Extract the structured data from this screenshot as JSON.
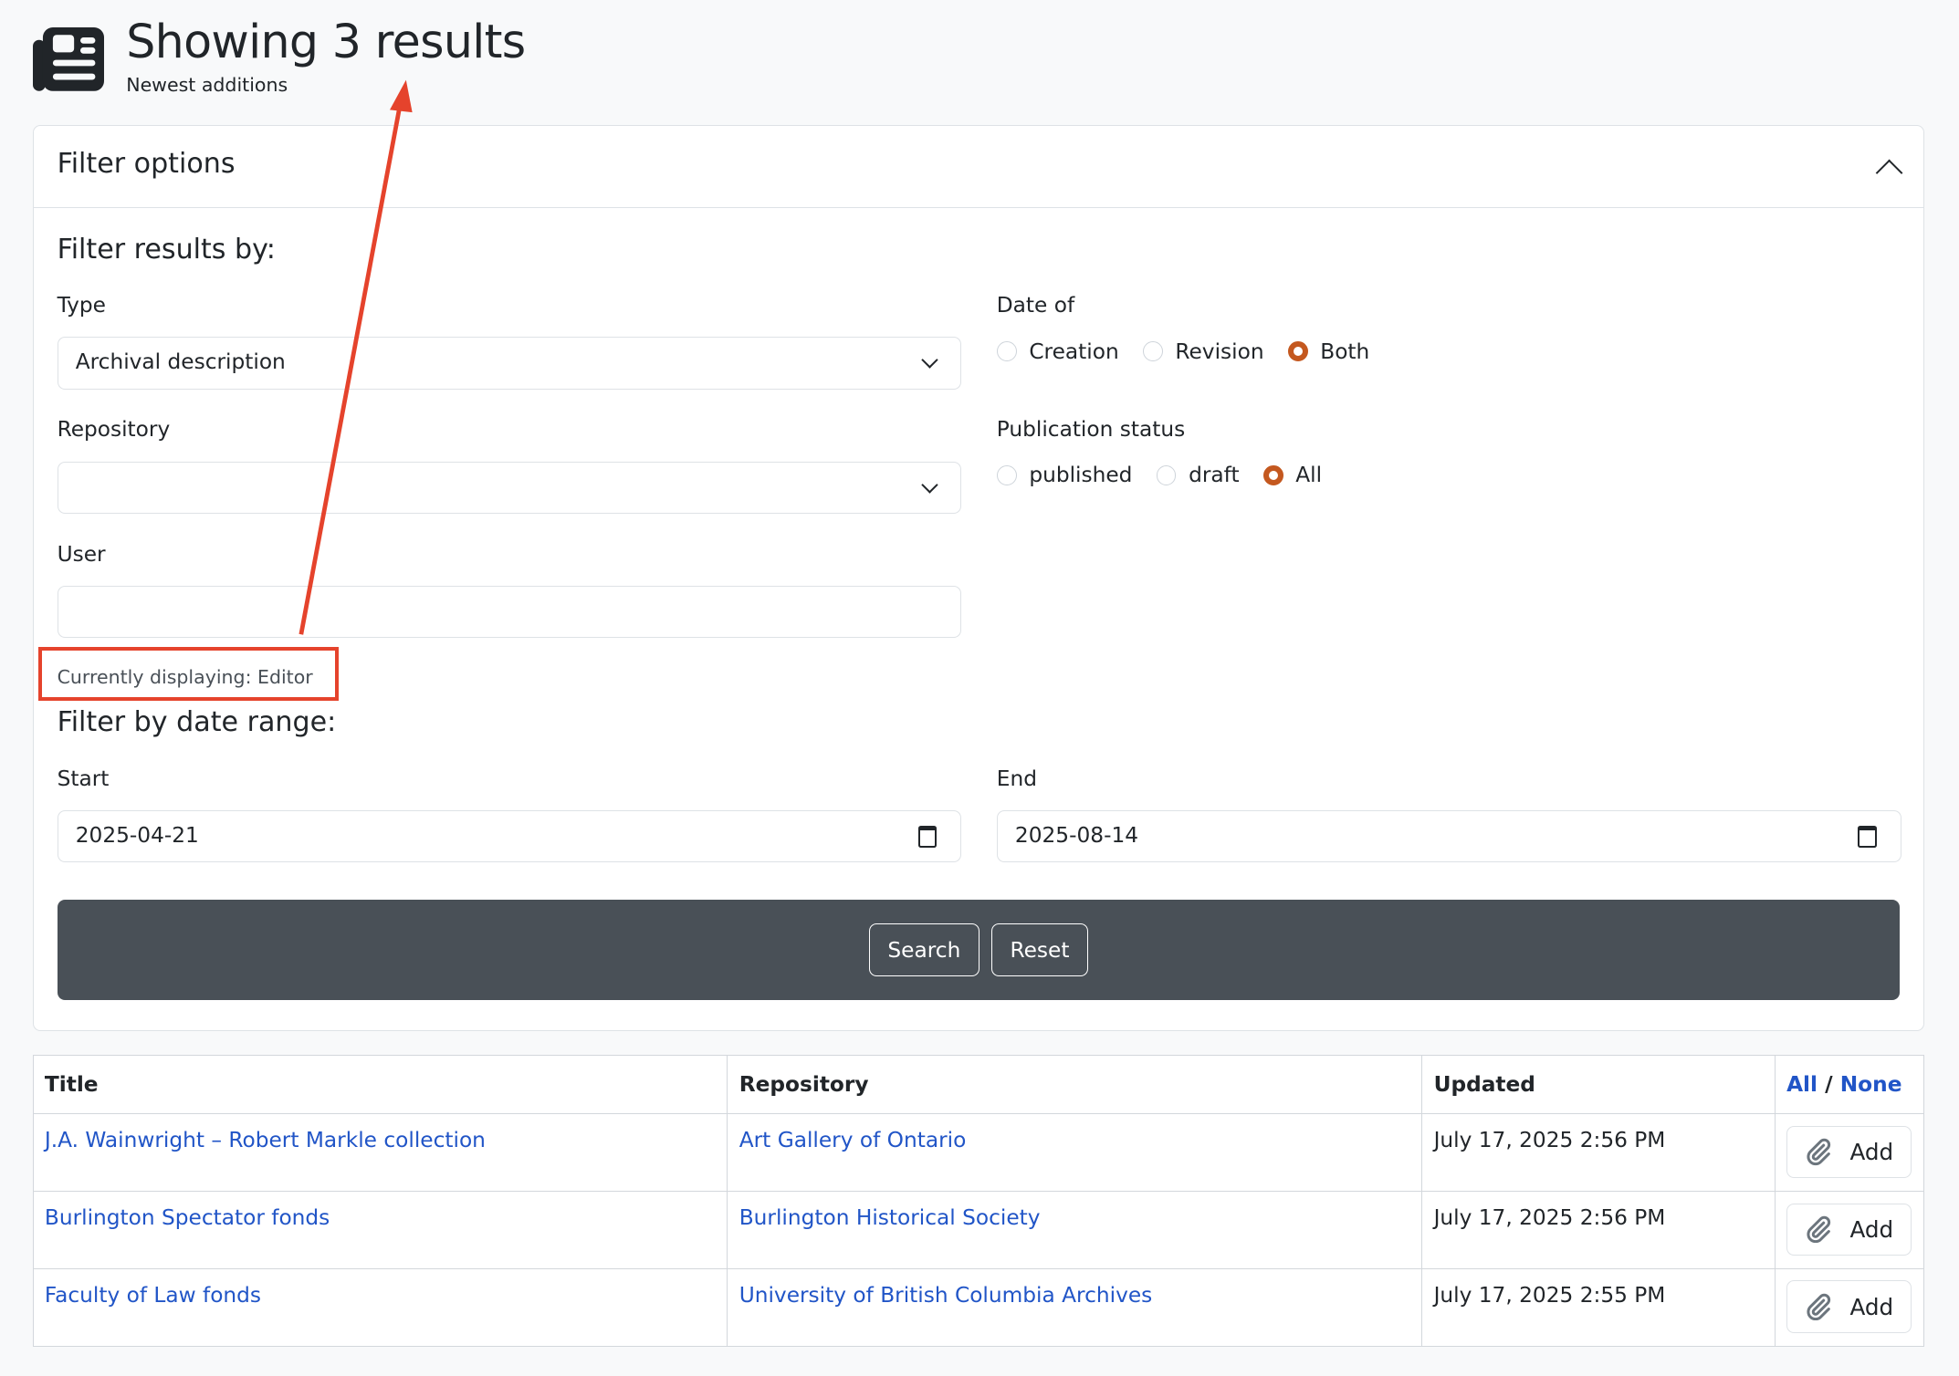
{
  "header": {
    "title": "Showing 3 results",
    "subtitle": "Newest additions",
    "icon": "newspaper-icon"
  },
  "filter": {
    "heading": "Filter options",
    "results_by": "Filter results by:",
    "type_label": "Type",
    "type_value": "Archival description",
    "repository_label": "Repository",
    "repository_value": "",
    "user_label": "User",
    "user_value": "",
    "currently_displaying": "Currently displaying: Editor",
    "date_of_label": "Date of",
    "date_of_options": [
      "Creation",
      "Revision",
      "Both"
    ],
    "date_of_selected": "Both",
    "pub_status_label": "Publication status",
    "pub_status_options": [
      "published",
      "draft",
      "All"
    ],
    "pub_status_selected": "All",
    "date_range_heading": "Filter by date range:",
    "start_label": "Start",
    "start_value": "2025-04-21",
    "end_label": "End",
    "end_value": "2025-08-14",
    "search_label": "Search",
    "reset_label": "Reset"
  },
  "table": {
    "headers": [
      "Title",
      "Repository",
      "Updated"
    ],
    "select_all": "All",
    "separator": "/",
    "select_none": "None",
    "add_label": "Add",
    "rows": [
      {
        "title": "J.A. Wainwright – Robert Markle collection",
        "repository": "Art Gallery of Ontario",
        "updated": "July 17, 2025 2:56 PM"
      },
      {
        "title": "Burlington Spectator fonds",
        "repository": "Burlington Historical Society",
        "updated": "July 17, 2025 2:56 PM"
      },
      {
        "title": "Faculty of Law fonds",
        "repository": "University of British Columbia Archives",
        "updated": "July 17, 2025 2:55 PM"
      }
    ]
  },
  "colors": {
    "accent": "#c4581f",
    "link": "#2155c7",
    "annotation": "#e5432c",
    "bar": "#495057"
  }
}
